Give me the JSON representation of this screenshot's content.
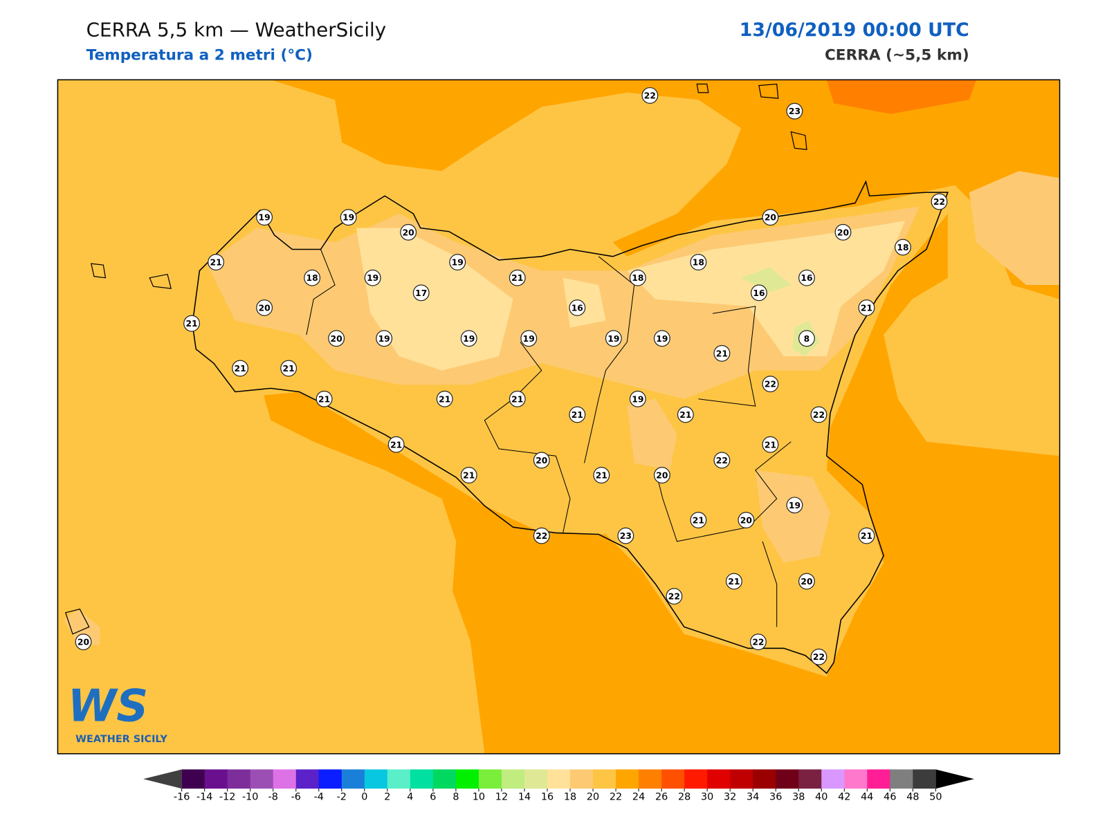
{
  "header": {
    "title": "CERRA 5,5 km — WeatherSicily",
    "subtitle": "Temperatura a 2 metri (°C)",
    "datetime": "13/06/2019 00:00 UTC",
    "model": "CERRA (~5,5 km)"
  },
  "map": {
    "station_values": [
      22,
      23,
      19,
      19,
      20,
      20,
      20,
      22,
      21,
      18,
      19,
      19,
      21,
      18,
      18,
      16,
      18,
      17,
      20,
      21,
      16,
      16,
      21,
      20,
      19,
      19,
      19,
      19,
      19,
      8,
      21,
      21,
      21,
      22,
      21,
      21,
      21,
      21,
      19,
      21,
      22,
      21,
      21,
      20,
      22,
      21,
      21,
      20,
      19,
      21,
      20,
      22,
      23,
      21,
      21,
      20,
      22,
      22,
      22,
      20
    ]
  },
  "colorbar": {
    "ticks": [
      -16,
      -14,
      -12,
      -10,
      -8,
      -6,
      -4,
      -2,
      0,
      2,
      4,
      6,
      8,
      10,
      12,
      14,
      16,
      18,
      20,
      22,
      24,
      26,
      28,
      30,
      32,
      34,
      36,
      38,
      40,
      42,
      44,
      46,
      48,
      50
    ],
    "colors": [
      "#3f0050",
      "#6a0f8e",
      "#7e2e9b",
      "#9b4fb4",
      "#dd72e6",
      "#5a22c8",
      "#0a1eff",
      "#1a7fd8",
      "#07c8e0",
      "#5aefc8",
      "#00e0a0",
      "#00d860",
      "#00f000",
      "#7aee3a",
      "#c0ec80",
      "#dfe895",
      "#ffe19a",
      "#fdca73",
      "#fec545",
      "#ffa500",
      "#ff8000",
      "#ff5000",
      "#ff1a00",
      "#e00000",
      "#c00000",
      "#9a0000",
      "#700018",
      "#7a2040",
      "#d898ff",
      "#ff78cc",
      "#ff1e96",
      "#7f7f7f",
      "#3c3c3c"
    ],
    "under_color": "#404040",
    "over_color": "#000000"
  },
  "logo": {
    "mark": "WS",
    "caption": "WEATHER SICILY"
  }
}
